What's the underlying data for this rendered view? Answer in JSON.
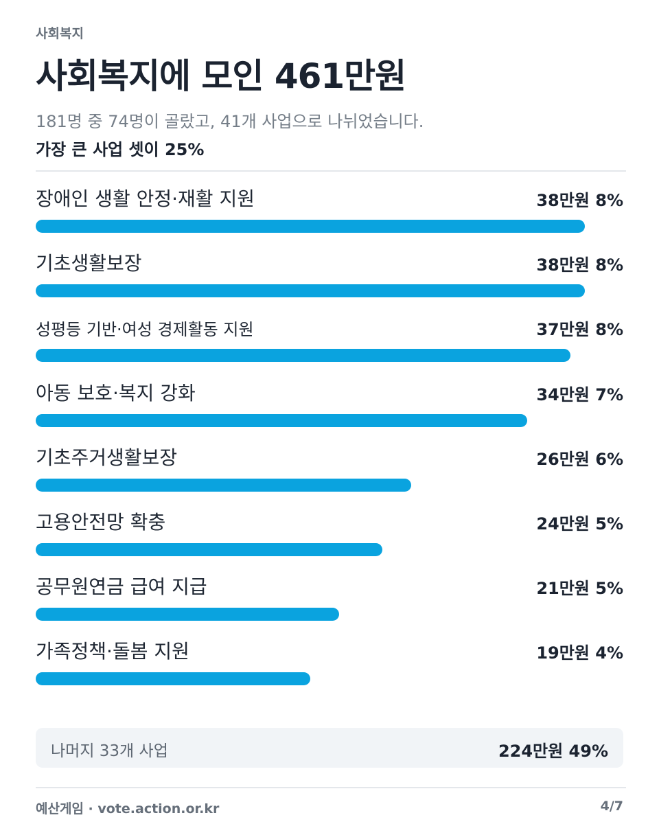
{
  "header": {
    "category": "사회복지",
    "title": "사회복지에 모인 461만원",
    "subtitle": "181명 중 74명이 골랐고, 41개 사업으로 나뉘었습니다.",
    "headline": "가장 큰 사업 셋이 25%"
  },
  "colors": {
    "bar": "#0aa3df",
    "rest_bg": "#f1f4f7"
  },
  "items": [
    {
      "label": "장애인 생활 안정·재활 지원",
      "amount": "38만원",
      "percent": "8%",
      "value": 38
    },
    {
      "label": "기초생활보장",
      "amount": "38만원",
      "percent": "8%",
      "value": 38
    },
    {
      "label": "성평등 기반·여성 경제활동 지원",
      "amount": "37만원",
      "percent": "8%",
      "value": 37
    },
    {
      "label": "아동 보호·복지 강화",
      "amount": "34만원",
      "percent": "7%",
      "value": 34
    },
    {
      "label": "기초주거생활보장",
      "amount": "26만원",
      "percent": "6%",
      "value": 26
    },
    {
      "label": "고용안전망 확충",
      "amount": "24만원",
      "percent": "5%",
      "value": 24
    },
    {
      "label": "공무원연금 급여 지급",
      "amount": "21만원",
      "percent": "5%",
      "value": 21
    },
    {
      "label": "가족정책·돌봄 지원",
      "amount": "19만원",
      "percent": "4%",
      "value": 19
    }
  ],
  "rest": {
    "label": "나머지 33개 사업",
    "value": "224만원 49%"
  },
  "footer": {
    "source": "예산게임 · vote.action.or.kr",
    "page": "4/7"
  }
}
